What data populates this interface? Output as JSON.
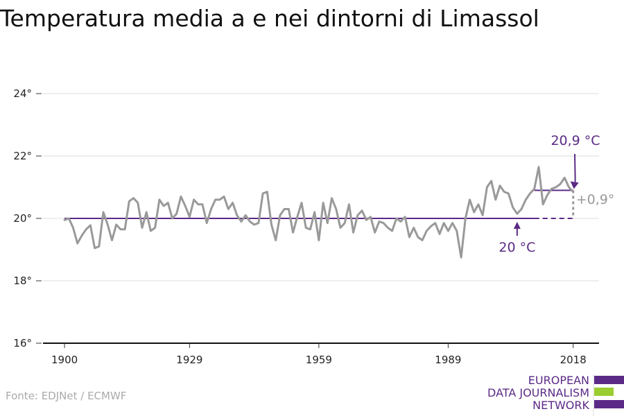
{
  "title": "Temperatura media a e nei dintorni di Limassol",
  "source": "Fonte: EDJNet / ECMWF",
  "brand": {
    "lines": [
      "EUROPEAN",
      "DATA JOURNALISM",
      "NETWORK"
    ]
  },
  "colors": {
    "accent": "#5b2a86",
    "series": "#999999",
    "grid": "#dddddd",
    "brand_green": "#9acd32",
    "text": "#222222"
  },
  "chart_data": {
    "type": "line",
    "title": "Temperatura media a e nei dintorni di Limassol",
    "xlabel": "",
    "ylabel": "",
    "xlim": [
      1895,
      2024
    ],
    "ylim": [
      16,
      24
    ],
    "x_ticks": [
      1900,
      1929,
      1959,
      1989,
      2018
    ],
    "y_ticks": [
      16,
      18,
      20,
      22,
      24
    ],
    "y_tick_labels": [
      "16°",
      "18°",
      "20°",
      "22°",
      "24°"
    ],
    "grid": true,
    "series": [
      {
        "name": "",
        "x_start": 1900,
        "values": [
          19.95,
          20.0,
          19.7,
          19.2,
          19.45,
          19.65,
          19.78,
          19.05,
          19.1,
          20.2,
          19.8,
          19.3,
          19.8,
          19.65,
          19.65,
          20.55,
          20.65,
          20.5,
          19.7,
          20.2,
          19.6,
          19.7,
          20.6,
          20.4,
          20.5,
          20.0,
          20.15,
          20.7,
          20.4,
          20.05,
          20.6,
          20.45,
          20.45,
          19.85,
          20.3,
          20.6,
          20.6,
          20.7,
          20.3,
          20.5,
          20.1,
          19.9,
          20.1,
          19.9,
          19.8,
          19.85,
          20.8,
          20.85,
          19.8,
          19.3,
          20.1,
          20.3,
          20.3,
          19.55,
          20.05,
          20.5,
          19.7,
          19.65,
          20.2,
          19.3,
          20.5,
          19.85,
          20.65,
          20.3,
          19.7,
          19.85,
          20.45,
          19.55,
          20.1,
          20.25,
          19.95,
          20.05,
          19.55,
          19.9,
          19.85,
          19.7,
          19.6,
          20.0,
          19.9,
          20.05,
          19.4,
          19.7,
          19.4,
          19.3,
          19.6,
          19.75,
          19.85,
          19.5,
          19.85,
          19.6,
          19.85,
          19.6,
          18.75,
          20.0,
          20.6,
          20.2,
          20.45,
          20.1,
          21.0,
          21.2,
          20.6,
          21.05,
          20.85,
          20.8,
          20.35,
          20.15,
          20.3,
          20.6,
          20.8,
          20.95,
          21.65,
          20.45,
          20.75,
          20.95,
          21.0,
          21.1,
          21.3,
          21.0,
          20.85
        ]
      }
    ],
    "reference_lines": [
      {
        "label": "20 °C",
        "value": 20.0,
        "x_range": [
          1900,
          2018
        ]
      },
      {
        "label": "20,9 °C",
        "value": 20.9,
        "x_range": [
          2009,
          2018
        ]
      }
    ],
    "annotations": [
      {
        "text": "+0,9°"
      }
    ]
  }
}
